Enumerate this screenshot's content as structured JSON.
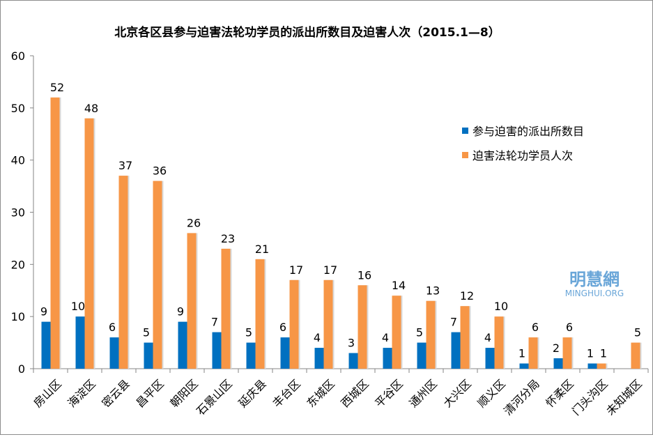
{
  "chart_data": {
    "type": "bar",
    "title": "北京各区县参与迫害法轮功学员的派出所数目及迫害人次（2015.1—8）",
    "xlabel": "",
    "ylabel": "",
    "ylim": [
      0,
      60
    ],
    "yticks": [
      0,
      10,
      20,
      30,
      40,
      50,
      60
    ],
    "grid": false,
    "legend_position": "right",
    "categories": [
      "房山区",
      "海淀区",
      "密云县",
      "昌平区",
      "朝阳区",
      "石景山区",
      "延庆县",
      "丰台区",
      "东城区",
      "西城区",
      "平谷区",
      "通州区",
      "大兴区",
      "顺义区",
      "清河分局",
      "怀柔区",
      "门头沟区",
      "未知城区"
    ],
    "series": [
      {
        "name": "参与迫害的派出所数目",
        "color": "#0070c0",
        "values": [
          9,
          10,
          6,
          5,
          9,
          7,
          5,
          6,
          4,
          3,
          4,
          5,
          7,
          4,
          1,
          2,
          1,
          0
        ],
        "show_label": [
          true,
          true,
          true,
          true,
          true,
          true,
          true,
          true,
          true,
          true,
          true,
          true,
          true,
          true,
          true,
          true,
          true,
          false
        ]
      },
      {
        "name": "迫害法轮功学员人次",
        "color": "#f79646",
        "values": [
          52,
          48,
          37,
          36,
          26,
          23,
          21,
          17,
          17,
          16,
          14,
          13,
          12,
          10,
          6,
          6,
          1,
          5
        ],
        "show_label": [
          true,
          true,
          true,
          true,
          true,
          true,
          true,
          true,
          true,
          true,
          true,
          true,
          true,
          true,
          true,
          true,
          true,
          true
        ]
      }
    ]
  },
  "watermark": {
    "logo_text": "明慧網",
    "site": "MINGHUI.ORG"
  }
}
